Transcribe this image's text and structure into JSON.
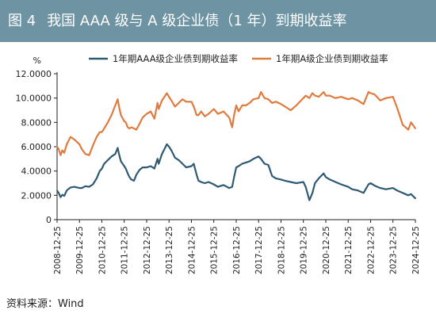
{
  "header": {
    "figure_label": "图 4",
    "title": "我国 AAA 级与 A 级企业债（1 年）到期收益率"
  },
  "source": "资料来源：Wind",
  "colors": {
    "title_bg": "#6e93a3",
    "aaa_series": "#2f5a73",
    "a_series": "#e07b3f"
  },
  "chart_data": {
    "type": "line",
    "title": "",
    "ylabel": "%",
    "xlabel": "",
    "ylim": [
      0,
      12
    ],
    "yticks": [
      "0",
      "2.0000",
      "4.0000",
      "6.0000",
      "8.0000",
      "10.0000",
      "12.0000"
    ],
    "xticks": [
      "2008-12-25",
      "2009-12-25",
      "2010-12-25",
      "2011-12-25",
      "2012-12-25",
      "2013-12-25",
      "2014-12-25",
      "2015-12-25",
      "2016-12-25",
      "2017-12-25",
      "2018-12-25",
      "2019-12-25",
      "2020-12-25",
      "2021-12-25",
      "2022-12-25",
      "2023-12-25",
      "2024-12-25"
    ],
    "grid": false,
    "legend_position": "top",
    "series": [
      {
        "name": "1年期AAA级企业债到期收益率",
        "color": "#2f5a73",
        "points": [
          [
            "2008-12-25",
            2.4
          ],
          [
            "2009-01-20",
            2.2
          ],
          [
            "2009-02-20",
            1.85
          ],
          [
            "2009-03-20",
            2.05
          ],
          [
            "2009-04-20",
            1.95
          ],
          [
            "2009-06-01",
            2.4
          ],
          [
            "2009-08-01",
            2.65
          ],
          [
            "2009-10-01",
            2.7
          ],
          [
            "2009-12-25",
            2.6
          ],
          [
            "2010-02-01",
            2.6
          ],
          [
            "2010-04-01",
            2.75
          ],
          [
            "2010-06-01",
            2.7
          ],
          [
            "2010-08-01",
            2.9
          ],
          [
            "2010-10-01",
            3.4
          ],
          [
            "2010-11-20",
            4.0
          ],
          [
            "2010-12-25",
            4.2
          ],
          [
            "2011-02-01",
            4.6
          ],
          [
            "2011-04-01",
            4.9
          ],
          [
            "2011-06-01",
            5.2
          ],
          [
            "2011-08-01",
            5.4
          ],
          [
            "2011-09-10",
            5.9
          ],
          [
            "2011-10-01",
            5.4
          ],
          [
            "2011-11-01",
            4.8
          ],
          [
            "2011-12-25",
            4.4
          ],
          [
            "2012-01-20",
            4.2
          ],
          [
            "2012-02-20",
            3.8
          ],
          [
            "2012-03-20",
            3.5
          ],
          [
            "2012-04-20",
            3.3
          ],
          [
            "2012-06-01",
            3.2
          ],
          [
            "2012-07-10",
            3.7
          ],
          [
            "2012-09-01",
            4.1
          ],
          [
            "2012-10-20",
            4.3
          ],
          [
            "2012-12-25",
            4.3
          ],
          [
            "2013-03-01",
            4.4
          ],
          [
            "2013-05-01",
            4.2
          ],
          [
            "2013-06-20",
            5.0
          ],
          [
            "2013-07-10",
            4.6
          ],
          [
            "2013-09-01",
            5.4
          ],
          [
            "2013-11-20",
            6.2
          ],
          [
            "2013-12-25",
            6.0
          ],
          [
            "2014-02-01",
            5.7
          ],
          [
            "2014-04-01",
            5.1
          ],
          [
            "2014-06-01",
            4.9
          ],
          [
            "2014-08-01",
            4.6
          ],
          [
            "2014-10-01",
            4.3
          ],
          [
            "2014-12-25",
            4.4
          ],
          [
            "2015-02-01",
            4.6
          ],
          [
            "2015-03-20",
            3.7
          ],
          [
            "2015-04-20",
            3.2
          ],
          [
            "2015-06-01",
            3.1
          ],
          [
            "2015-08-01",
            3.0
          ],
          [
            "2015-10-01",
            3.1
          ],
          [
            "2015-12-25",
            2.9
          ],
          [
            "2016-03-01",
            2.7
          ],
          [
            "2016-06-01",
            2.85
          ],
          [
            "2016-09-01",
            2.6
          ],
          [
            "2016-10-20",
            2.7
          ],
          [
            "2016-11-20",
            3.5
          ],
          [
            "2016-12-25",
            4.3
          ],
          [
            "2017-02-01",
            4.4
          ],
          [
            "2017-04-01",
            4.6
          ],
          [
            "2017-06-01",
            4.7
          ],
          [
            "2017-08-01",
            4.8
          ],
          [
            "2017-10-01",
            5.0
          ],
          [
            "2017-12-25",
            5.2
          ],
          [
            "2018-02-01",
            5.0
          ],
          [
            "2018-04-01",
            4.6
          ],
          [
            "2018-06-01",
            4.5
          ],
          [
            "2018-08-01",
            3.6
          ],
          [
            "2018-10-01",
            3.4
          ],
          [
            "2018-12-25",
            3.3
          ],
          [
            "2019-03-01",
            3.2
          ],
          [
            "2019-06-01",
            3.1
          ],
          [
            "2019-09-01",
            3.0
          ],
          [
            "2019-12-25",
            3.1
          ],
          [
            "2020-02-01",
            2.7
          ],
          [
            "2020-04-01",
            1.6
          ],
          [
            "2020-05-20",
            2.2
          ],
          [
            "2020-07-01",
            3.0
          ],
          [
            "2020-09-01",
            3.4
          ],
          [
            "2020-11-20",
            3.8
          ],
          [
            "2020-12-25",
            3.5
          ],
          [
            "2021-03-01",
            3.3
          ],
          [
            "2021-06-01",
            3.1
          ],
          [
            "2021-09-01",
            2.9
          ],
          [
            "2021-12-25",
            2.7
          ],
          [
            "2022-03-01",
            2.5
          ],
          [
            "2022-06-01",
            2.4
          ],
          [
            "2022-09-01",
            2.2
          ],
          [
            "2022-11-20",
            2.9
          ],
          [
            "2022-12-25",
            3.0
          ],
          [
            "2023-03-01",
            2.8
          ],
          [
            "2023-06-01",
            2.6
          ],
          [
            "2023-09-01",
            2.5
          ],
          [
            "2023-12-25",
            2.6
          ],
          [
            "2024-03-01",
            2.4
          ],
          [
            "2024-06-01",
            2.2
          ],
          [
            "2024-09-01",
            2.0
          ],
          [
            "2024-10-15",
            2.1
          ],
          [
            "2024-12-25",
            1.75
          ]
        ]
      },
      {
        "name": "1年期A级企业债到期收益率",
        "color": "#e07b3f",
        "points": [
          [
            "2008-12-25",
            6.0
          ],
          [
            "2009-01-20",
            5.8
          ],
          [
            "2009-02-20",
            5.3
          ],
          [
            "2009-03-20",
            5.7
          ],
          [
            "2009-04-20",
            5.5
          ],
          [
            "2009-06-01",
            6.2
          ],
          [
            "2009-08-01",
            6.8
          ],
          [
            "2009-10-01",
            6.6
          ],
          [
            "2009-12-25",
            6.2
          ],
          [
            "2010-02-01",
            5.8
          ],
          [
            "2010-04-01",
            5.4
          ],
          [
            "2010-06-01",
            5.3
          ],
          [
            "2010-08-01",
            6.1
          ],
          [
            "2010-10-01",
            6.8
          ],
          [
            "2010-11-20",
            7.2
          ],
          [
            "2010-12-25",
            7.2
          ],
          [
            "2011-02-01",
            7.5
          ],
          [
            "2011-04-01",
            8.0
          ],
          [
            "2011-06-01",
            8.6
          ],
          [
            "2011-08-01",
            9.4
          ],
          [
            "2011-09-10",
            9.9
          ],
          [
            "2011-10-01",
            9.3
          ],
          [
            "2011-11-01",
            8.6
          ],
          [
            "2011-12-25",
            8.1
          ],
          [
            "2012-01-20",
            8.0
          ],
          [
            "2012-02-20",
            7.6
          ],
          [
            "2012-03-20",
            7.5
          ],
          [
            "2012-04-20",
            7.6
          ],
          [
            "2012-06-01",
            7.5
          ],
          [
            "2012-07-10",
            7.4
          ],
          [
            "2012-09-01",
            7.9
          ],
          [
            "2012-10-20",
            8.4
          ],
          [
            "2012-12-25",
            8.7
          ],
          [
            "2013-03-01",
            8.9
          ],
          [
            "2013-05-01",
            8.3
          ],
          [
            "2013-06-20",
            9.6
          ],
          [
            "2013-07-10",
            9.1
          ],
          [
            "2013-09-01",
            9.8
          ],
          [
            "2013-11-20",
            10.4
          ],
          [
            "2013-12-25",
            10.1
          ],
          [
            "2014-02-01",
            9.8
          ],
          [
            "2014-04-01",
            9.3
          ],
          [
            "2014-06-01",
            9.6
          ],
          [
            "2014-08-01",
            9.9
          ],
          [
            "2014-10-01",
            9.7
          ],
          [
            "2014-12-25",
            9.7
          ],
          [
            "2015-02-01",
            9.3
          ],
          [
            "2015-03-20",
            8.6
          ],
          [
            "2015-04-20",
            8.6
          ],
          [
            "2015-06-01",
            8.9
          ],
          [
            "2015-08-01",
            8.5
          ],
          [
            "2015-10-01",
            8.7
          ],
          [
            "2015-12-25",
            9.1
          ],
          [
            "2016-03-01",
            8.7
          ],
          [
            "2016-06-01",
            8.9
          ],
          [
            "2016-09-01",
            8.4
          ],
          [
            "2016-10-20",
            7.6
          ],
          [
            "2016-11-20",
            8.6
          ],
          [
            "2016-12-25",
            9.4
          ],
          [
            "2017-02-01",
            8.9
          ],
          [
            "2017-04-01",
            9.4
          ],
          [
            "2017-06-01",
            9.4
          ],
          [
            "2017-08-01",
            9.6
          ],
          [
            "2017-10-01",
            9.9
          ],
          [
            "2017-12-25",
            10.0
          ],
          [
            "2018-02-01",
            10.5
          ],
          [
            "2018-04-01",
            10.0
          ],
          [
            "2018-06-01",
            9.9
          ],
          [
            "2018-08-01",
            9.6
          ],
          [
            "2018-10-01",
            9.7
          ],
          [
            "2018-12-25",
            9.5
          ],
          [
            "2019-03-01",
            9.3
          ],
          [
            "2019-06-01",
            9.0
          ],
          [
            "2019-09-01",
            9.4
          ],
          [
            "2019-12-25",
            10.0
          ],
          [
            "2020-02-01",
            10.2
          ],
          [
            "2020-04-01",
            10.0
          ],
          [
            "2020-05-20",
            10.4
          ],
          [
            "2020-07-01",
            10.2
          ],
          [
            "2020-09-01",
            10.1
          ],
          [
            "2020-11-20",
            10.5
          ],
          [
            "2020-12-25",
            10.2
          ],
          [
            "2021-03-01",
            10.2
          ],
          [
            "2021-06-01",
            10.0
          ],
          [
            "2021-09-01",
            10.1
          ],
          [
            "2021-12-25",
            9.9
          ],
          [
            "2022-03-01",
            10.0
          ],
          [
            "2022-06-01",
            9.8
          ],
          [
            "2022-09-01",
            9.5
          ],
          [
            "2022-11-20",
            10.5
          ],
          [
            "2022-12-25",
            10.4
          ],
          [
            "2023-03-01",
            10.3
          ],
          [
            "2023-06-01",
            9.8
          ],
          [
            "2023-09-01",
            10.0
          ],
          [
            "2023-12-25",
            10.1
          ],
          [
            "2024-03-01",
            9.2
          ],
          [
            "2024-06-01",
            7.8
          ],
          [
            "2024-09-01",
            7.4
          ],
          [
            "2024-10-15",
            8.0
          ],
          [
            "2024-12-25",
            7.5
          ]
        ]
      }
    ]
  }
}
